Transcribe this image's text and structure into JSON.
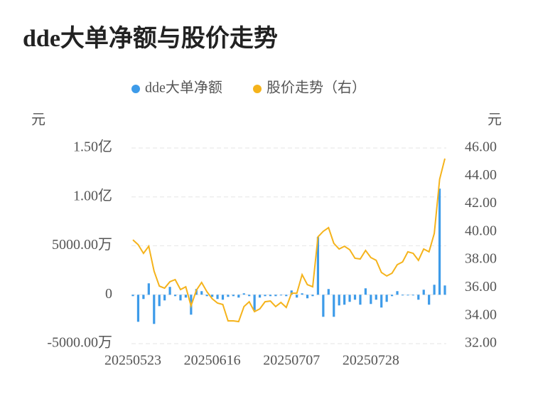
{
  "chart_data": {
    "type": "bar",
    "title": "dde大单净额与股价走势",
    "ylabel": "元",
    "y2label": "元",
    "categories": [
      "20250523",
      null,
      null,
      null,
      null,
      null,
      null,
      null,
      null,
      null,
      null,
      null,
      null,
      null,
      null,
      "20250616",
      null,
      null,
      null,
      null,
      null,
      null,
      null,
      null,
      null,
      null,
      null,
      null,
      null,
      null,
      "20250707",
      null,
      null,
      null,
      null,
      null,
      null,
      null,
      null,
      null,
      null,
      null,
      null,
      null,
      null,
      "20250728",
      null,
      null,
      null,
      null,
      null,
      null,
      null,
      null,
      null,
      null,
      null,
      null,
      null,
      null
    ],
    "series": [
      {
        "name": "dde大单净额",
        "type": "bar",
        "color": "#3d9be9",
        "values": [
          -146,
          -2766,
          -437,
          1165,
          -2985,
          -1165,
          -582,
          801,
          -146,
          -582,
          -291,
          -2038,
          582,
          364,
          -146,
          -218,
          -437,
          -510,
          -218,
          -146,
          -291,
          146,
          -146,
          -1602,
          -291,
          -146,
          -146,
          -146,
          -73,
          -146,
          437,
          -291,
          146,
          -364,
          -146,
          5897,
          -2257,
          582,
          -2257,
          -1092,
          -1019,
          -728,
          -510,
          -1019,
          655,
          -946,
          -510,
          -1310,
          -728,
          -146,
          364,
          -73,
          -73,
          -73,
          -510,
          510,
          -1019,
          1019,
          10847,
          946
        ]
      },
      {
        "name": "股价走势（右）",
        "type": "line",
        "axis": "y2",
        "color": "#f5b31b",
        "values": [
          39.43,
          39.08,
          38.46,
          38.97,
          37.19,
          36.12,
          35.97,
          36.43,
          36.58,
          35.87,
          36.07,
          34.7,
          35.82,
          36.38,
          35.71,
          35.21,
          34.9,
          34.8,
          33.63,
          33.63,
          33.58,
          34.65,
          35.0,
          34.29,
          34.49,
          35.0,
          35.05,
          34.65,
          34.95,
          34.59,
          35.61,
          35.61,
          36.94,
          36.22,
          36.07,
          39.64,
          40.04,
          40.3,
          39.18,
          38.77,
          38.97,
          38.72,
          38.11,
          38.06,
          38.67,
          38.16,
          37.96,
          37.09,
          36.84,
          37.04,
          37.65,
          37.85,
          38.57,
          38.46,
          37.96,
          38.77,
          38.57,
          39.89,
          43.76,
          45.24
        ]
      }
    ],
    "ylim": [
      -5000,
      15000
    ],
    "yticks": [
      {
        "value": -5000,
        "label": "-5000.00万"
      },
      0,
      {
        "value": 5000,
        "label": "5000.00万"
      },
      {
        "value": 10000,
        "label": "1.00亿"
      },
      {
        "value": 15000,
        "label": "1.50亿"
      }
    ],
    "y2lim": [
      32,
      46
    ],
    "y2ticks": [
      {
        "value": 32,
        "label": "32.00"
      },
      {
        "value": 34,
        "label": "34.00"
      },
      {
        "value": 36,
        "label": "36.00"
      },
      {
        "value": 38,
        "label": "38.00"
      },
      {
        "value": 40,
        "label": "40.00"
      },
      {
        "value": 42,
        "label": "42.00"
      },
      {
        "value": 44,
        "label": "44.00"
      },
      {
        "value": 46,
        "label": "46.00"
      }
    ],
    "grid": true
  }
}
